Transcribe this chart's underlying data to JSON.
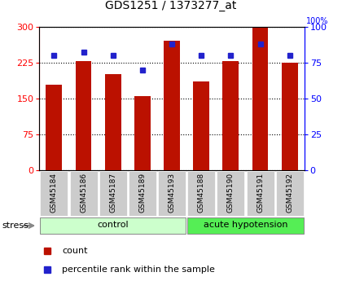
{
  "title": "GDS1251 / 1373277_at",
  "samples": [
    "GSM45184",
    "GSM45186",
    "GSM45187",
    "GSM45189",
    "GSM45193",
    "GSM45188",
    "GSM45190",
    "GSM45191",
    "GSM45192"
  ],
  "counts": [
    178,
    228,
    200,
    154,
    270,
    185,
    228,
    298,
    224
  ],
  "percentiles": [
    80,
    82,
    80,
    70,
    88,
    80,
    80,
    88,
    80
  ],
  "n_control": 5,
  "bar_color": "#bb1100",
  "dot_color": "#2222cc",
  "ylim_left": [
    0,
    300
  ],
  "ylim_right": [
    0,
    100
  ],
  "yticks_left": [
    0,
    75,
    150,
    225,
    300
  ],
  "yticks_right": [
    0,
    25,
    50,
    75,
    100
  ],
  "control_label": "control",
  "acute_label": "acute hypotension",
  "control_color": "#ccffcc",
  "acute_color": "#55ee55",
  "xlabel_bg": "#cccccc",
  "bar_width": 0.55,
  "title_fontsize": 10,
  "tick_fontsize": 8,
  "label_fontsize": 8,
  "legend_fontsize": 8
}
